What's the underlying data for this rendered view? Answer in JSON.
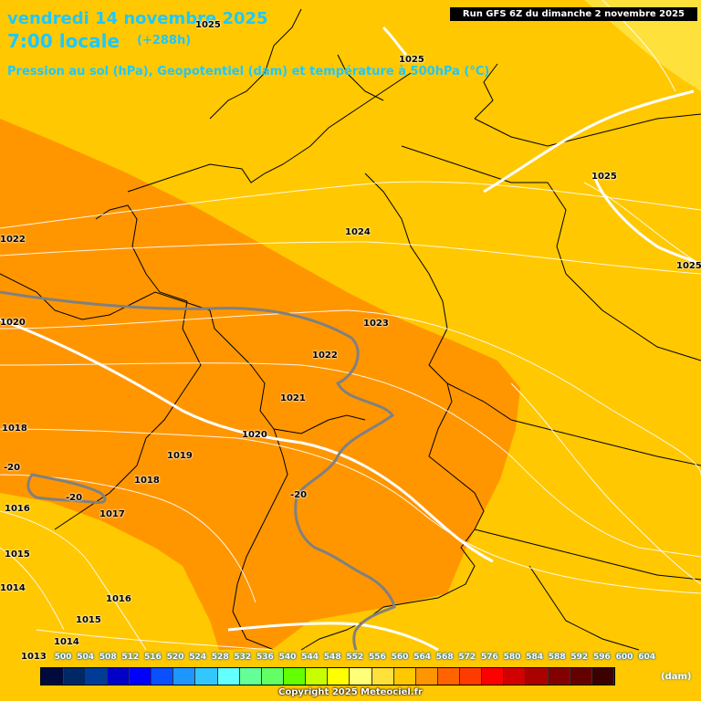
{
  "header": {
    "date": "vendredi 14 novembre 2025",
    "time": "7:00 locale",
    "lead": "(+288h)",
    "variable": "Pression au sol (hPa), Geopotentiel (dam) et température à 500hPa (°C)",
    "run": "Run GFS 6Z du dimanche 2 novembre 2025"
  },
  "map": {
    "fill_colors": {
      "band_564_568": "#ffc800",
      "band_568_572": "#ff9600",
      "band_560_564": "#ffe13c",
      "isobars": "#ffffff",
      "borders": "#000000",
      "isotherm": "#808080"
    },
    "isobar_labels": [
      "1025",
      "1025",
      "1025",
      "1025",
      "1024",
      "1023",
      "1022",
      "1022",
      "1021",
      "1020",
      "1020",
      "1019",
      "1018",
      "1018",
      "1017",
      "1016",
      "1016",
      "1015",
      "1015",
      "1014",
      "1014",
      "1013"
    ],
    "isotherm_labels": [
      "-20",
      "-20",
      "-20"
    ]
  },
  "legend": {
    "labels": [
      "500",
      "504",
      "508",
      "512",
      "516",
      "520",
      "524",
      "528",
      "532",
      "536",
      "540",
      "544",
      "548",
      "552",
      "556",
      "560",
      "564",
      "568",
      "572",
      "576",
      "580",
      "584",
      "588",
      "592",
      "596",
      "600",
      "604"
    ],
    "colors": [
      "#000a3c",
      "#002864",
      "#003c96",
      "#0000c8",
      "#0000ff",
      "#0a50ff",
      "#1e96ff",
      "#32c8ff",
      "#64ffff",
      "#64ff96",
      "#64ff64",
      "#64ff00",
      "#c8ff00",
      "#ffff00",
      "#ffff78",
      "#ffe13c",
      "#ffc800",
      "#ff9600",
      "#ff6400",
      "#ff3c00",
      "#ff0000",
      "#d20000",
      "#aa0000",
      "#820000",
      "#640000",
      "#3c0000"
    ],
    "unit": "(dam)",
    "copyright": "Copyright 2025 Meteociel.fr"
  }
}
